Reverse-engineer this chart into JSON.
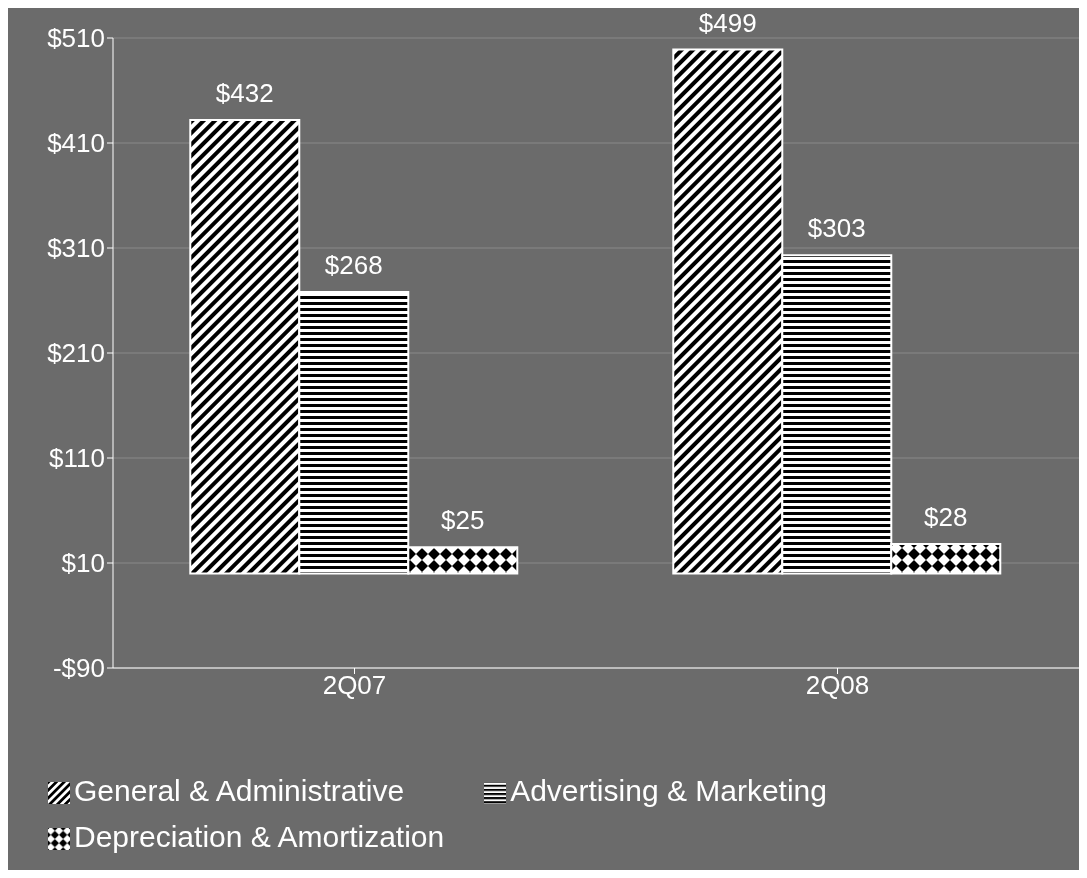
{
  "chart_data": {
    "type": "bar",
    "categories": [
      "2Q07",
      "2Q08"
    ],
    "series": [
      {
        "name": "General & Administrative",
        "color": "#ffffff",
        "values": [
          432,
          499
        ],
        "value_labels": [
          "$432",
          "$499"
        ]
      },
      {
        "name": "Advertising & Marketing",
        "color": "#ffffff",
        "values": [
          268,
          303
        ],
        "value_labels": [
          "$268",
          "$303"
        ]
      },
      {
        "name": "Depreciation & Amortization",
        "color": "#ffffff",
        "values": [
          25,
          28
        ],
        "value_labels": [
          "$25",
          "$28"
        ]
      }
    ],
    "ylim": [
      -90,
      510
    ],
    "yticks": [
      {
        "value": -90,
        "label": "-$90"
      },
      {
        "value": 10,
        "label": "$10"
      },
      {
        "value": 110,
        "label": "$110"
      },
      {
        "value": 210,
        "label": "$210"
      },
      {
        "value": 310,
        "label": "$310"
      },
      {
        "value": 410,
        "label": "$410"
      },
      {
        "value": 510,
        "label": "$510"
      }
    ],
    "grid": "y",
    "legend": "bottom"
  }
}
